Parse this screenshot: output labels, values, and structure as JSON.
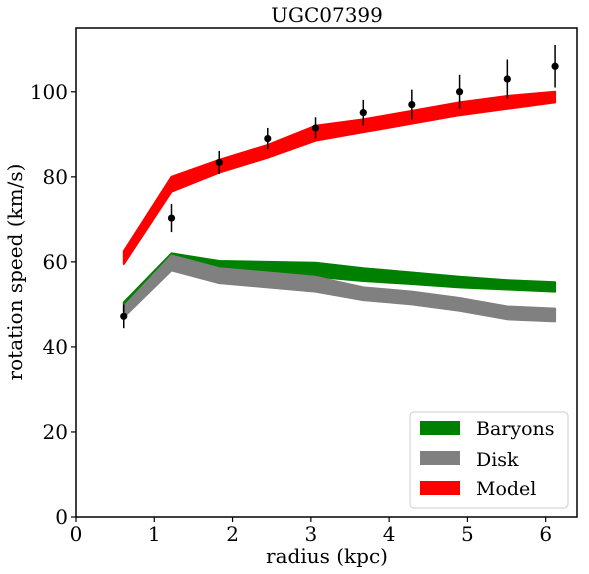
{
  "chart_data": {
    "type": "area",
    "title": "UGC07399",
    "xlabel": "radius (kpc)",
    "ylabel": "rotation speed (km/s)",
    "xlim": [
      0,
      6.4
    ],
    "ylim": [
      0,
      115
    ],
    "xticks": [
      0,
      1,
      2,
      3,
      4,
      5,
      6
    ],
    "yticks": [
      0,
      20,
      40,
      60,
      80,
      100
    ],
    "legend_position": "lower right",
    "x": [
      0.61,
      1.22,
      1.83,
      2.45,
      3.06,
      3.67,
      4.29,
      4.9,
      5.51,
      6.12
    ],
    "series": [
      {
        "name": "Baryons",
        "color": "#008000",
        "lower": [
          48.5,
          58.5,
          57.0,
          56.8,
          56.5,
          55.5,
          54.8,
          54.0,
          53.5,
          53.0
        ],
        "upper": [
          50.5,
          62.0,
          60.2,
          60.0,
          59.8,
          58.5,
          57.5,
          56.5,
          55.7,
          55.2
        ]
      },
      {
        "name": "Disk",
        "color": "#808080",
        "lower": [
          47.0,
          58.0,
          55.0,
          54.0,
          53.0,
          51.0,
          50.0,
          48.5,
          46.5,
          46.0
        ],
        "upper": [
          49.5,
          61.5,
          58.5,
          57.5,
          56.5,
          54.0,
          53.0,
          51.5,
          49.5,
          49.0
        ]
      },
      {
        "name": "Model",
        "color": "#ff0000",
        "lower": [
          59.5,
          76.5,
          81.0,
          84.5,
          88.5,
          90.5,
          92.5,
          94.5,
          96.0,
          97.5
        ],
        "upper": [
          62.5,
          80.0,
          84.0,
          87.5,
          92.0,
          93.5,
          95.5,
          97.5,
          99.0,
          100.0
        ]
      }
    ],
    "observations": {
      "color": "#000000",
      "x": [
        0.61,
        1.22,
        1.83,
        2.45,
        3.06,
        3.67,
        4.29,
        4.9,
        5.51,
        6.12
      ],
      "y": [
        47.2,
        70.3,
        83.4,
        89.0,
        91.5,
        95.1,
        97.0,
        100.0,
        103.0,
        106.0
      ],
      "err": [
        2.8,
        3.3,
        2.7,
        2.5,
        2.5,
        3.0,
        3.5,
        4.0,
        4.6,
        5.0
      ]
    }
  }
}
